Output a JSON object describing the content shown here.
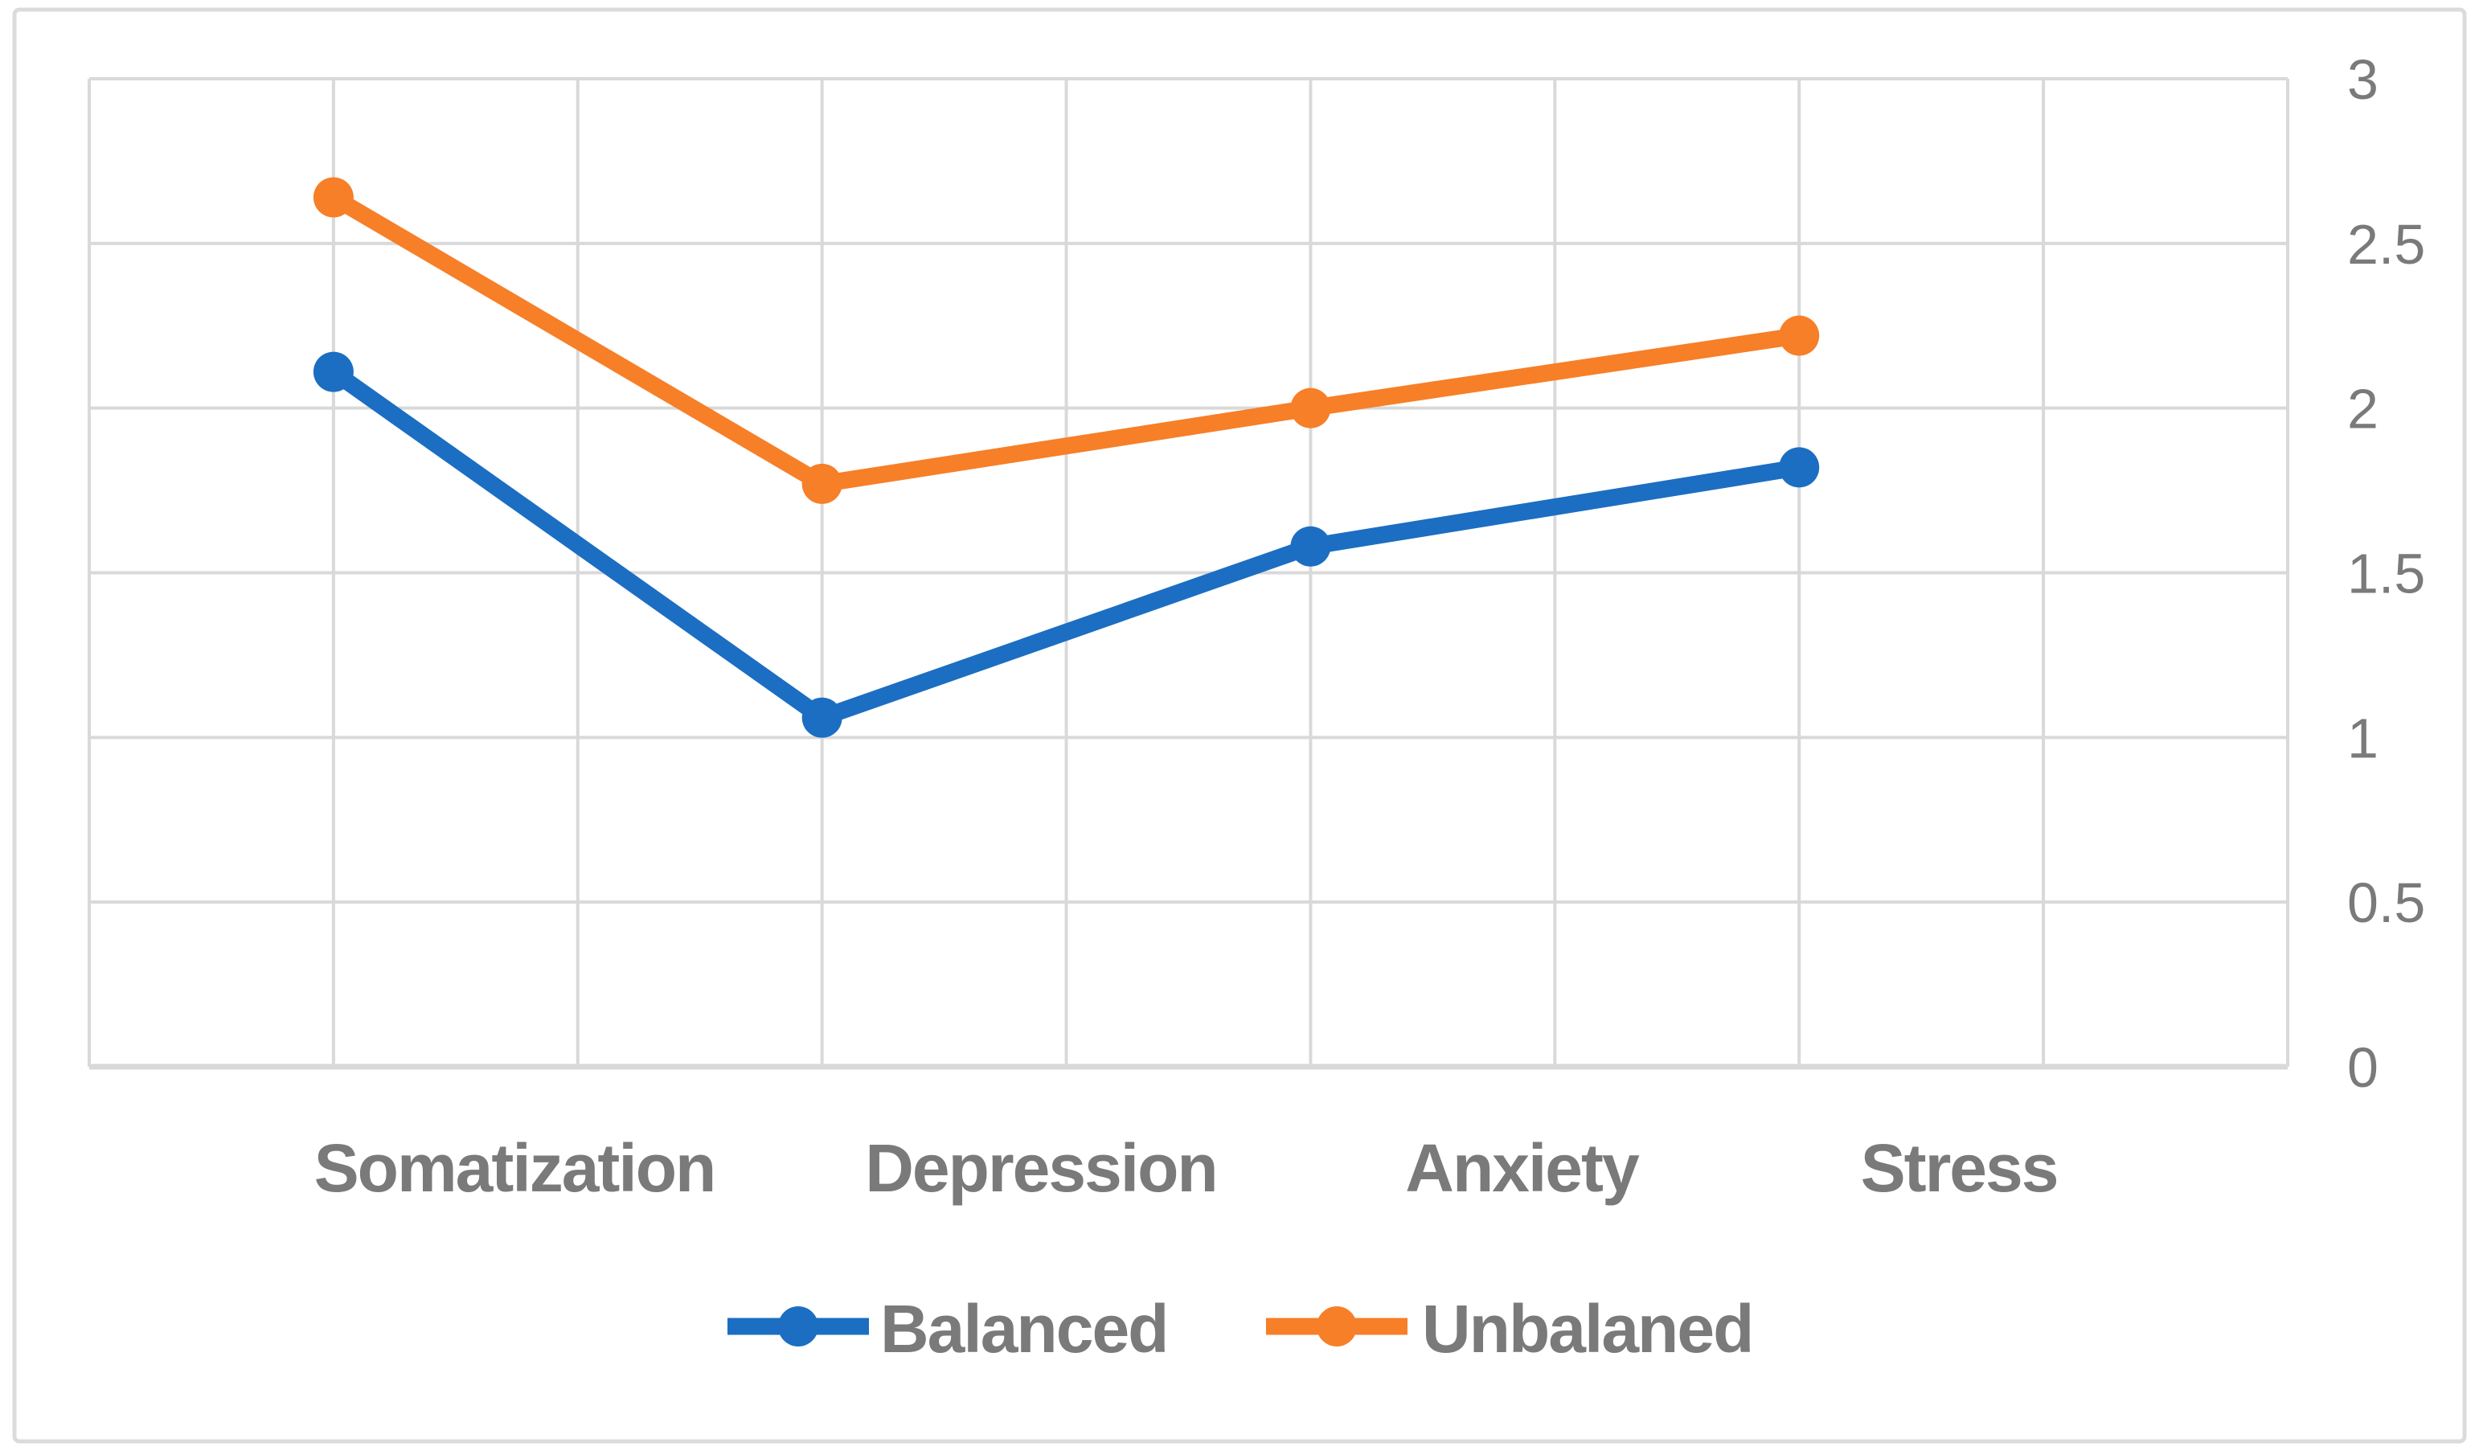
{
  "figure": {
    "background": "#FFFFFF",
    "border_color": "#DBDBDB"
  },
  "chart_data": {
    "type": "line",
    "title": "",
    "xlabel": "",
    "ylabel": "",
    "categories": [
      "Somatization",
      "Depression",
      "Anxiety",
      "Stress"
    ],
    "series": [
      {
        "name": "Balanced",
        "color": "#1B6EC2",
        "values": [
          2.11,
          1.06,
          1.58,
          1.82
        ]
      },
      {
        "name": "Unbalaned",
        "color": "#F67F28",
        "values": [
          2.64,
          1.77,
          2.0,
          2.22
        ]
      }
    ],
    "ylim": [
      0,
      3
    ],
    "yticks": [
      0,
      0.5,
      1,
      1.5,
      2,
      2.5,
      3
    ],
    "ytick_labels": [
      "0",
      "0.5",
      "1",
      "1.5",
      "2",
      "2.5",
      "3"
    ],
    "ytick_side": "right",
    "grid": true,
    "gridline_color": "#D9D9D9",
    "axis_text_color": "#7A7A7A",
    "legend_position": "bottom",
    "marker": "circle"
  }
}
